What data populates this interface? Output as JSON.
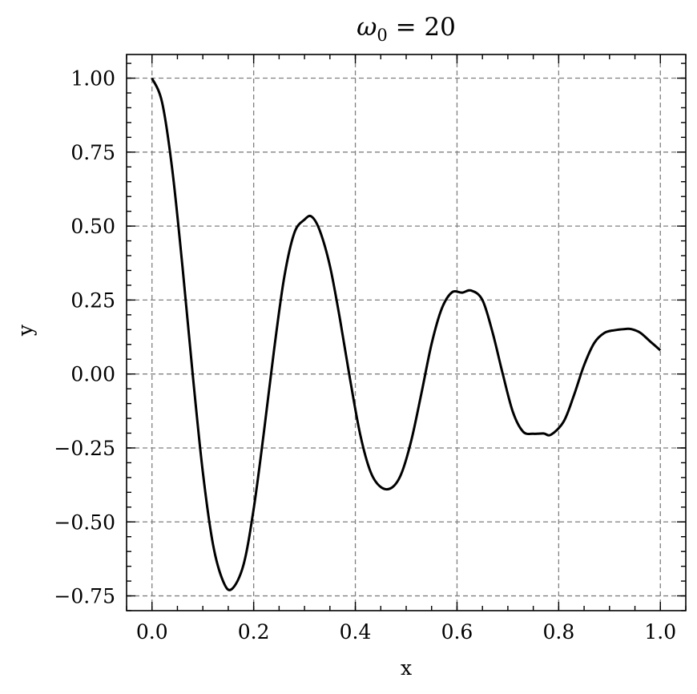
{
  "chart_data": {
    "type": "line",
    "title": "ω₀ = 20",
    "title_parts": {
      "symbol": "ω",
      "subscript": "0",
      "rest": " = 20"
    },
    "xlabel": "x",
    "ylabel": "y",
    "xlim": [
      -0.05,
      1.05
    ],
    "ylim": [
      -0.8,
      1.08
    ],
    "x_ticks": [
      0.0,
      0.2,
      0.4,
      0.6,
      0.8,
      1.0
    ],
    "x_tick_labels": [
      "0.0",
      "0.2",
      "0.4",
      "0.6",
      "0.8",
      "1.0"
    ],
    "y_ticks": [
      1.0,
      0.75,
      0.5,
      0.25,
      0.0,
      -0.25,
      -0.5,
      -0.75
    ],
    "y_tick_labels": [
      "1.00",
      "0.75",
      "0.50",
      "0.25",
      "0.00",
      "−0.25",
      "−0.50",
      "−0.75"
    ],
    "grid": true,
    "series": [
      {
        "color": "#000000",
        "x": [
          0.0,
          0.02,
          0.04,
          0.06,
          0.08,
          0.1,
          0.12,
          0.14,
          0.157,
          0.18,
          0.2,
          0.22,
          0.24,
          0.26,
          0.28,
          0.3,
          0.314,
          0.33,
          0.35,
          0.37,
          0.39,
          0.41,
          0.43,
          0.45,
          0.471,
          0.49,
          0.51,
          0.53,
          0.55,
          0.57,
          0.59,
          0.61,
          0.628,
          0.65,
          0.67,
          0.69,
          0.71,
          0.73,
          0.75,
          0.77,
          0.785,
          0.81,
          0.83,
          0.85,
          0.87,
          0.89,
          0.91,
          0.93,
          0.942,
          0.96,
          0.98,
          1.0
        ],
        "y": [
          1.0,
          0.917,
          0.689,
          0.362,
          0.0,
          -0.332,
          -0.576,
          -0.701,
          -0.727,
          -0.645,
          -0.456,
          -0.198,
          0.08,
          0.326,
          0.477,
          0.522,
          0.532,
          0.485,
          0.365,
          0.183,
          -0.022,
          -0.208,
          -0.331,
          -0.382,
          -0.385,
          -0.339,
          -0.225,
          -0.065,
          0.102,
          0.221,
          0.276,
          0.275,
          0.282,
          0.25,
          0.14,
          0.0,
          -0.129,
          -0.195,
          -0.202,
          -0.201,
          -0.205,
          -0.16,
          -0.072,
          0.03,
          0.105,
          0.139,
          0.148,
          0.152,
          0.152,
          0.14,
          0.11,
          0.08
        ]
      }
    ]
  }
}
